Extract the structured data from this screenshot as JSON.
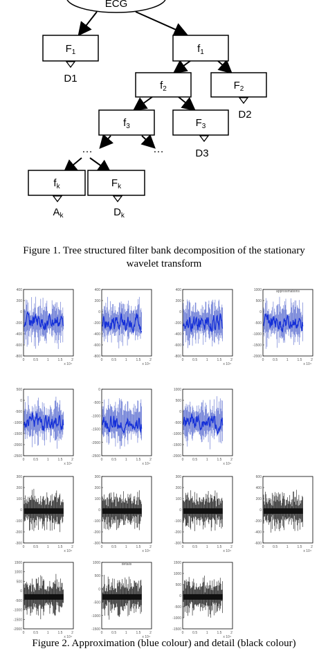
{
  "figure1": {
    "root": "ECG",
    "nodes": [
      {
        "id": "F1",
        "label": "F",
        "sub": "1"
      },
      {
        "id": "f1",
        "label": "f",
        "sub": "1"
      },
      {
        "id": "f2",
        "label": "f",
        "sub": "2"
      },
      {
        "id": "F2",
        "label": "F",
        "sub": "2"
      },
      {
        "id": "f3",
        "label": "f",
        "sub": "3"
      },
      {
        "id": "F3",
        "label": "F",
        "sub": "3"
      },
      {
        "id": "fk",
        "label": "f",
        "sub": "k"
      },
      {
        "id": "Fk",
        "label": "F",
        "sub": "k"
      }
    ],
    "outputs": [
      {
        "id": "D1",
        "label": "D1",
        "sub": ""
      },
      {
        "id": "D2",
        "label": "D2",
        "sub": ""
      },
      {
        "id": "D3",
        "label": "D3",
        "sub": ""
      },
      {
        "id": "Ak",
        "label": "A",
        "sub": "k"
      },
      {
        "id": "Dk",
        "label": "D",
        "sub": "k"
      }
    ],
    "ellipsis": "…",
    "caption_line1": "Figure 1.   Tree structured filter bank decomposition of the stationary",
    "caption_line2": "wavelet transform"
  },
  "figure2": {
    "exponent_label": "x 10⁴",
    "approx_title": "approximations",
    "detail_title": "details",
    "x_ticks": [
      "0",
      "0.5",
      "1",
      "1.5",
      "2"
    ],
    "panels": [
      {
        "kind": "approx",
        "yticks": [
          "400",
          "200",
          "0",
          "-200",
          "-400",
          "-600",
          "-800"
        ]
      },
      {
        "kind": "approx",
        "yticks": [
          "400",
          "200",
          "0",
          "-200",
          "-400",
          "-600",
          "-800"
        ]
      },
      {
        "kind": "approx",
        "yticks": [
          "400",
          "200",
          "0",
          "-200",
          "-400",
          "-600",
          "-800"
        ]
      },
      {
        "kind": "approx",
        "yticks": [
          "1000",
          "500",
          "0",
          "-500",
          "-1000",
          "-1500",
          "-2000"
        ],
        "title": true
      },
      {
        "kind": "approx",
        "yticks": [
          "500",
          "0",
          "-500",
          "-1000",
          "-1500",
          "-2000",
          "-2500"
        ]
      },
      {
        "kind": "approx",
        "yticks": [
          "0",
          "-500",
          "-1000",
          "-1500",
          "-2000",
          "-2500"
        ]
      },
      {
        "kind": "approx",
        "yticks": [
          "1000",
          "500",
          "0",
          "-500",
          "-1000",
          "-1500",
          "-2000"
        ]
      },
      {
        "kind": "detail",
        "yticks": [
          "300",
          "200",
          "100",
          "0",
          "-100",
          "-200",
          "-300"
        ]
      },
      {
        "kind": "detail",
        "yticks": [
          "300",
          "200",
          "100",
          "0",
          "-100",
          "-200",
          "-300"
        ]
      },
      {
        "kind": "detail",
        "yticks": [
          "300",
          "200",
          "100",
          "0",
          "-100",
          "-200",
          "-300"
        ]
      },
      {
        "kind": "detail",
        "yticks": [
          "600",
          "400",
          "200",
          "0",
          "-200",
          "-400",
          "-600"
        ]
      },
      {
        "kind": "detail",
        "yticks": [
          "1500",
          "1000",
          "500",
          "0",
          "-500",
          "-1000",
          "-1500",
          "-2000"
        ]
      },
      {
        "kind": "detail",
        "yticks": [
          "1000",
          "500",
          "0",
          "-500",
          "-1000",
          "-1500"
        ],
        "title": true
      },
      {
        "kind": "detail",
        "yticks": [
          "1500",
          "1000",
          "500",
          "0",
          "-500",
          "-1000",
          "-1500"
        ]
      }
    ],
    "caption": "Figure 2.   Approximation (blue colour) and detail (black colour)"
  }
}
